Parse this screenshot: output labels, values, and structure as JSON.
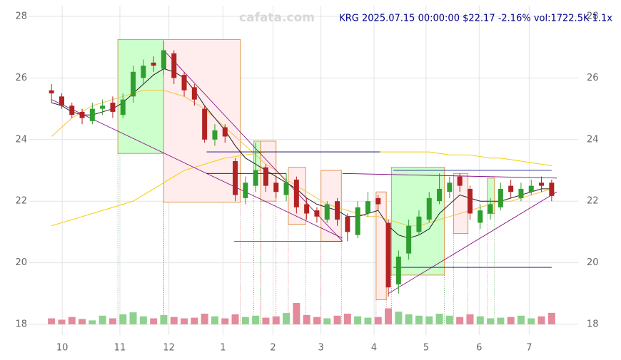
{
  "chart_data": {
    "type": "candlestick",
    "title": "KRG 2025.07.15 00:00:00 $22.17 -2.16% vol:1722.5K 1.1x",
    "watermark": "cafata.com",
    "xlim": [
      -0.5,
      49.5
    ],
    "ylim": [
      18,
      28
    ],
    "yticks": [
      18,
      20,
      22,
      24,
      26,
      28
    ],
    "xticks": [
      {
        "value": 1.05,
        "label": "10"
      },
      {
        "value": 6.7,
        "label": "11"
      },
      {
        "value": 11.5,
        "label": "12"
      },
      {
        "value": 16.8,
        "label": "1"
      },
      {
        "value": 21.7,
        "label": "2"
      },
      {
        "value": 26.4,
        "label": "3"
      },
      {
        "value": 31.6,
        "label": "4"
      },
      {
        "value": 36.7,
        "label": "5"
      },
      {
        "value": 41.9,
        "label": "6"
      },
      {
        "value": 46.8,
        "label": "7"
      }
    ],
    "grid": true,
    "up_color": "#2e9e2e",
    "down_color": "#b22222",
    "volume_up_color": "#8fd18f",
    "volume_down_color": "#e38b9b",
    "open": [
      25.6,
      25.4,
      25.1,
      24.9,
      24.6,
      25.0,
      25.2,
      24.8,
      25.4,
      26.0,
      26.5,
      26.3,
      26.8,
      26.1,
      25.7,
      25.0,
      24.0,
      24.4,
      23.3,
      22.1,
      22.5,
      23.1,
      22.6,
      22.2,
      22.7,
      21.9,
      21.7,
      21.4,
      22.0,
      21.5,
      20.9,
      21.6,
      22.1,
      21.3,
      19.3,
      20.3,
      21.0,
      21.4,
      22.0,
      22.3,
      22.8,
      22.4,
      21.3,
      21.6,
      21.8,
      22.5,
      22.1,
      22.3,
      22.6,
      22.6
    ],
    "high": [
      25.8,
      25.5,
      25.2,
      25.0,
      25.2,
      25.3,
      25.4,
      25.5,
      26.4,
      26.6,
      26.7,
      27.2,
      26.9,
      26.2,
      25.8,
      25.1,
      24.5,
      24.5,
      23.4,
      22.8,
      23.9,
      23.2,
      22.8,
      22.9,
      22.8,
      22.1,
      21.8,
      22.0,
      22.1,
      21.6,
      22.0,
      22.3,
      22.2,
      21.4,
      20.4,
      21.4,
      21.7,
      22.3,
      22.9,
      22.8,
      22.9,
      22.5,
      21.9,
      22.1,
      22.6,
      22.7,
      22.6,
      22.7,
      22.8,
      22.7
    ],
    "low": [
      25.2,
      25.0,
      24.7,
      24.5,
      24.5,
      24.8,
      24.7,
      24.7,
      25.2,
      25.8,
      26.2,
      26.1,
      25.8,
      25.4,
      25.1,
      23.9,
      23.8,
      23.9,
      22.0,
      21.9,
      22.3,
      22.3,
      22.1,
      22.0,
      21.6,
      21.4,
      21.3,
      21.3,
      21.2,
      20.7,
      20.8,
      21.5,
      21.7,
      18.9,
      19.0,
      20.1,
      20.9,
      21.3,
      21.9,
      22.1,
      22.3,
      21.4,
      21.1,
      21.4,
      21.7,
      22.1,
      22.0,
      22.2,
      22.3,
      22.0
    ],
    "close": [
      25.5,
      25.1,
      24.8,
      24.7,
      25.0,
      25.1,
      24.9,
      25.3,
      26.2,
      26.4,
      26.4,
      26.9,
      26.0,
      25.6,
      25.3,
      24.0,
      24.3,
      24.1,
      22.2,
      22.6,
      23.0,
      22.5,
      22.3,
      22.6,
      21.8,
      21.6,
      21.5,
      21.9,
      21.4,
      21.0,
      21.8,
      22.0,
      21.9,
      19.2,
      20.2,
      21.2,
      21.5,
      22.1,
      22.4,
      22.6,
      22.5,
      21.6,
      21.7,
      21.9,
      22.4,
      22.3,
      22.4,
      22.5,
      22.5,
      22.17
    ],
    "volume": [
      900,
      700,
      1100,
      800,
      600,
      1300,
      900,
      1500,
      1800,
      1200,
      900,
      1400,
      1100,
      900,
      1000,
      1600,
      1200,
      900,
      1500,
      1100,
      1300,
      1000,
      1200,
      1700,
      3200,
      1400,
      1100,
      900,
      1300,
      1600,
      1200,
      1000,
      1100,
      2400,
      1900,
      1500,
      1300,
      1200,
      1600,
      1300,
      1100,
      1500,
      1200,
      900,
      1000,
      1100,
      1300,
      900,
      1200,
      1722.5
    ],
    "ma_fast": {
      "color": "#222222",
      "values": [
        25.2,
        25.1,
        24.9,
        24.8,
        24.8,
        24.9,
        25.0,
        25.2,
        25.5,
        25.8,
        26.1,
        26.3,
        26.2,
        26.0,
        25.6,
        25.1,
        24.7,
        24.3,
        23.8,
        23.4,
        23.2,
        23.0,
        22.8,
        22.6,
        22.4,
        22.1,
        21.9,
        21.8,
        21.7,
        21.5,
        21.5,
        21.6,
        21.7,
        21.2,
        20.9,
        20.8,
        20.9,
        21.1,
        21.6,
        21.9,
        22.2,
        22.1,
        22.0,
        22.0,
        22.0,
        22.1,
        22.2,
        22.3,
        22.4,
        22.4
      ]
    },
    "ma_mid": {
      "color": "#f5c242",
      "values": [
        24.1,
        24.4,
        24.7,
        24.9,
        25.1,
        25.2,
        25.3,
        25.4,
        25.5,
        25.6,
        25.6,
        25.6,
        25.5,
        25.4,
        25.2,
        25.0,
        24.7,
        24.4,
        24.1,
        23.8,
        23.5,
        23.2,
        23.0,
        22.7,
        22.5,
        22.3,
        22.1,
        21.9,
        21.8,
        21.7,
        21.6,
        21.5,
        21.5,
        21.4,
        21.3,
        21.2,
        21.2,
        21.3,
        21.4,
        21.5,
        21.6,
        21.7,
        21.8,
        21.9,
        22.0,
        22.0,
        22.1,
        22.2,
        22.3,
        22.4
      ]
    },
    "ma_slow": {
      "color": "#f2d000",
      "values": [
        21.2,
        21.3,
        21.4,
        21.5,
        21.6,
        21.7,
        21.8,
        21.9,
        22.0,
        22.2,
        22.4,
        22.6,
        22.8,
        23.0,
        23.1,
        23.2,
        23.3,
        23.4,
        23.45,
        23.5,
        23.55,
        23.6,
        23.6,
        23.6,
        23.6,
        23.6,
        23.6,
        23.6,
        23.6,
        23.6,
        23.6,
        23.6,
        23.6,
        23.6,
        23.6,
        23.6,
        23.6,
        23.6,
        23.55,
        23.5,
        23.5,
        23.5,
        23.45,
        23.4,
        23.4,
        23.35,
        23.3,
        23.25,
        23.2,
        23.15
      ]
    },
    "zone_stroke": "#e0944f",
    "zones": [
      {
        "color": "#ccffcc",
        "x": [
          6.5,
          11.0
        ],
        "y": [
          23.55,
          27.25
        ]
      },
      {
        "color": "#ffecec",
        "x": [
          11.0,
          18.5
        ],
        "y": [
          21.97,
          27.25
        ]
      },
      {
        "color": "#ccffcc",
        "x": [
          19.8,
          20.5
        ],
        "y": [
          23.0,
          23.95
        ]
      },
      {
        "color": "#ffecec",
        "x": [
          20.5,
          22.0
        ],
        "y": [
          22.0,
          23.95
        ]
      },
      {
        "color": "#ffecec",
        "x": [
          23.2,
          24.9
        ],
        "y": [
          21.25,
          23.1
        ]
      },
      {
        "color": "#ffecec",
        "x": [
          26.4,
          28.4
        ],
        "y": [
          20.7,
          23.0
        ]
      },
      {
        "color": "#ffecec",
        "x": [
          31.8,
          32.8
        ],
        "y": [
          18.8,
          22.3
        ]
      },
      {
        "color": "#ccffcc",
        "x": [
          33.3,
          38.5
        ],
        "y": [
          19.6,
          23.1
        ]
      },
      {
        "color": "#ffecec",
        "x": [
          39.4,
          40.8
        ],
        "y": [
          20.95,
          22.9
        ]
      },
      {
        "color": "#ccffcc",
        "x": [
          42.7,
          43.4
        ],
        "y": [
          21.6,
          22.75
        ]
      }
    ],
    "lines": [
      {
        "color": "#800080",
        "x": [
          0,
          28.5
        ],
        "y": [
          25.3,
          20.8
        ]
      },
      {
        "color": "#800080",
        "x": [
          11,
          28.5
        ],
        "y": [
          26.9,
          20.7
        ]
      },
      {
        "color": "#800080",
        "x": [
          33,
          49.5
        ],
        "y": [
          19.0,
          22.3
        ]
      },
      {
        "color": "#800080",
        "x": [
          17.9,
          28.5
        ],
        "y": [
          20.7,
          20.7
        ]
      },
      {
        "color": "#800080",
        "x": [
          28.5,
          49.5
        ],
        "y": [
          22.9,
          22.75
        ]
      },
      {
        "color": "#00008b",
        "x": [
          15.2,
          32.2
        ],
        "y": [
          23.6,
          23.6
        ]
      },
      {
        "color": "#00008b",
        "x": [
          15.2,
          23.0
        ],
        "y": [
          22.9,
          22.9
        ]
      },
      {
        "color": "#00008b",
        "x": [
          33.5,
          49.0
        ],
        "y": [
          19.85,
          19.85
        ]
      },
      {
        "color": "#00008b",
        "x": [
          33.5,
          49.0
        ],
        "y": [
          23.0,
          23.0
        ]
      }
    ]
  }
}
